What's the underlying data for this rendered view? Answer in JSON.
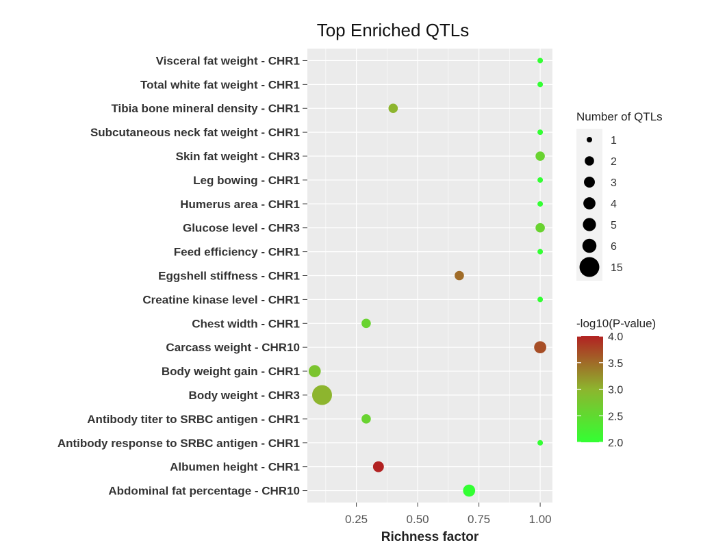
{
  "chart_data": {
    "type": "scatter",
    "title": "Top Enriched QTLs",
    "xlabel": "Richness factor",
    "ylabel": "",
    "xlim": [
      0.05,
      1.05
    ],
    "xticks": [
      "0.25",
      "0.50",
      "0.75",
      "1.00"
    ],
    "xtick_values": [
      0.25,
      0.5,
      0.75,
      1.0
    ],
    "grid": true,
    "points": [
      {
        "label": "Visceral fat weight - CHR1",
        "x": 1.0,
        "count": 1,
        "neglog10p": 2.0
      },
      {
        "label": "Total white fat weight - CHR1",
        "x": 1.0,
        "count": 1,
        "neglog10p": 2.0
      },
      {
        "label": "Tibia bone mineral density - CHR1",
        "x": 0.4,
        "count": 2,
        "neglog10p": 3.0
      },
      {
        "label": "Subcutaneous neck fat weight - CHR1",
        "x": 1.0,
        "count": 1,
        "neglog10p": 2.0
      },
      {
        "label": "Skin fat weight - CHR3",
        "x": 1.0,
        "count": 2,
        "neglog10p": 2.6
      },
      {
        "label": "Leg bowing - CHR1",
        "x": 1.0,
        "count": 1,
        "neglog10p": 2.0
      },
      {
        "label": "Humerus area - CHR1",
        "x": 1.0,
        "count": 1,
        "neglog10p": 2.0
      },
      {
        "label": "Glucose level - CHR3",
        "x": 1.0,
        "count": 2,
        "neglog10p": 2.6
      },
      {
        "label": "Feed efficiency - CHR1",
        "x": 1.0,
        "count": 1,
        "neglog10p": 2.0
      },
      {
        "label": "Eggshell stiffness - CHR1",
        "x": 0.67,
        "count": 2,
        "neglog10p": 3.5
      },
      {
        "label": "Creatine kinase level - CHR1",
        "x": 1.0,
        "count": 1,
        "neglog10p": 2.0
      },
      {
        "label": "Chest width - CHR1",
        "x": 0.29,
        "count": 2,
        "neglog10p": 2.6
      },
      {
        "label": "Carcass weight - CHR10",
        "x": 1.0,
        "count": 4,
        "neglog10p": 3.7
      },
      {
        "label": "Body weight gain - CHR1",
        "x": 0.08,
        "count": 4,
        "neglog10p": 2.8
      },
      {
        "label": "Body weight - CHR3",
        "x": 0.11,
        "count": 15,
        "neglog10p": 3.0
      },
      {
        "label": "Antibody titer to SRBC antigen - CHR1",
        "x": 0.29,
        "count": 2,
        "neglog10p": 2.6
      },
      {
        "label": "Antibody response to SRBC antigen - CHR1",
        "x": 1.0,
        "count": 1,
        "neglog10p": 2.0
      },
      {
        "label": "Albumen height - CHR1",
        "x": 0.34,
        "count": 3,
        "neglog10p": 4.0
      },
      {
        "label": "Abdominal fat percentage - CHR10",
        "x": 0.71,
        "count": 4,
        "neglog10p": 2.0
      }
    ],
    "size_legend": {
      "title": "Number of QTLs",
      "values": [
        1,
        2,
        3,
        4,
        5,
        6,
        15
      ],
      "labels": [
        "1",
        "2",
        "3",
        "4",
        "5",
        "6",
        "15"
      ]
    },
    "color_legend": {
      "title": "-log10(P-value)",
      "min": 2.0,
      "max": 4.0,
      "ticks": [
        4.0,
        3.5,
        3.0,
        2.5,
        2.0
      ],
      "tick_labels": [
        "4.0",
        "3.5",
        "3.0",
        "2.5",
        "2.0"
      ],
      "low_color": "#33ff33",
      "mid_color": "#8db52e",
      "high_color": "#b22222"
    },
    "panel_background": "#ebebeb",
    "legend_position": "right"
  }
}
